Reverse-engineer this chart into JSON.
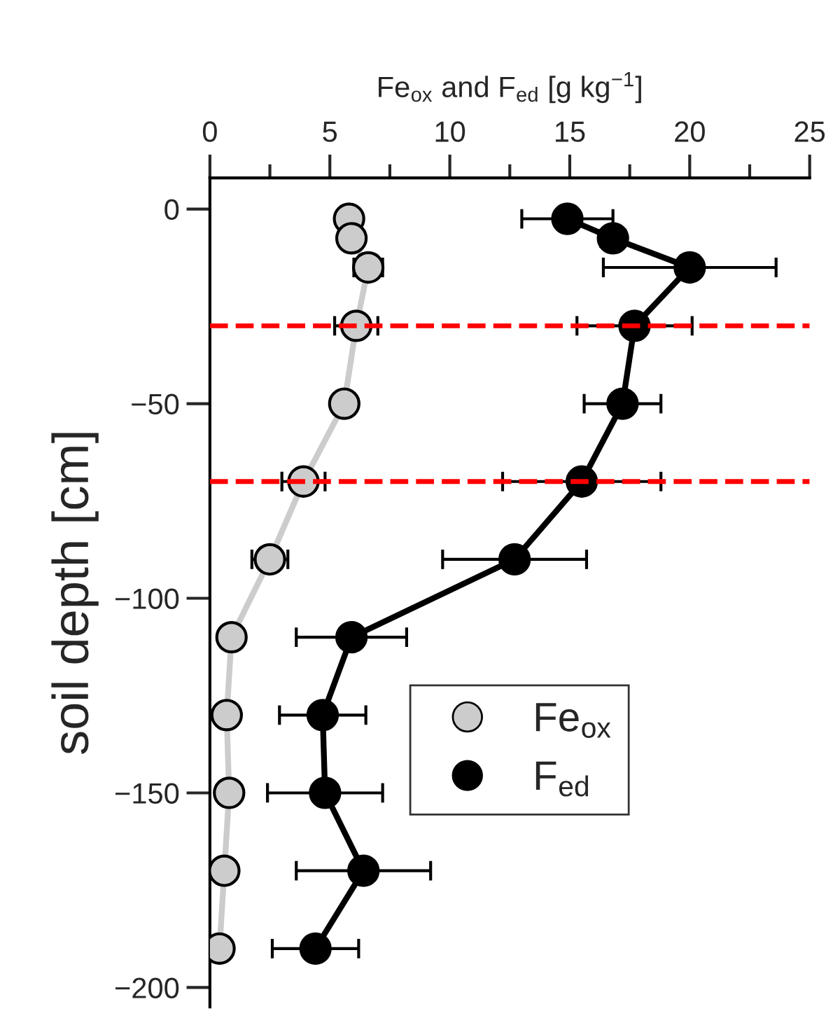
{
  "chart_data": {
    "type": "line",
    "xlabel": "Fe$_{ox}$ and F$_{ed}$ [g kg$^{−1}$]",
    "ylabel": "soil depth [cm]",
    "xlim": [
      0,
      25
    ],
    "xticks": [
      0,
      {
        "value": 2.5,
        "label": null
      },
      5,
      {
        "value": 7.5,
        "label": null
      },
      10,
      {
        "value": 12.5,
        "label": null
      },
      15,
      {
        "value": 17.5,
        "label": null
      },
      20,
      {
        "value": 22.5,
        "label": null
      },
      25
    ],
    "ylim": [
      -205,
      8
    ],
    "yticks": [
      0,
      {
        "value": -50,
        "label": "−50"
      },
      {
        "value": -100,
        "label": "−100"
      },
      {
        "value": -150,
        "label": "−150"
      },
      {
        "value": -200,
        "label": "−200"
      }
    ],
    "series": [
      {
        "name": "Fe$_{ox}$",
        "color": "#cccccc",
        "x": [
          5.8,
          5.9,
          6.6,
          6.1,
          5.6,
          3.9,
          2.5,
          0.9,
          0.7,
          0.8,
          0.6,
          0.4
        ],
        "values": [
          -2.5,
          -7.5,
          -15,
          -30,
          -50,
          -70,
          -90,
          -110,
          -130,
          -150,
          -170,
          -190
        ],
        "xerrors": [
          null,
          null,
          0.6,
          0.9,
          null,
          0.9,
          0.75,
          null,
          null,
          null,
          null,
          null
        ]
      },
      {
        "name": "F$_{ed}$",
        "color": "#000000",
        "x": [
          14.9,
          16.8,
          20.0,
          17.7,
          17.2,
          15.5,
          12.7,
          5.9,
          4.7,
          4.8,
          6.4,
          4.4
        ],
        "values": [
          -2.5,
          -7.5,
          -15,
          -30,
          -50,
          -70,
          -90,
          -110,
          -130,
          -150,
          -170,
          -190
        ],
        "xerrors": [
          1.9,
          0.5,
          3.6,
          2.4,
          1.6,
          3.3,
          3.0,
          2.3,
          1.8,
          2.4,
          2.8,
          1.8
        ]
      }
    ],
    "ref_lines": [
      {
        "axis": "y",
        "value": -30,
        "label": null,
        "color": "#ff0000",
        "line_style": "dashed"
      },
      {
        "axis": "y",
        "value": -70,
        "label": null,
        "color": "#ff0000",
        "line_style": "dashed"
      }
    ],
    "marker": "circle",
    "line_style": "solid",
    "grid": false,
    "legend": "right"
  }
}
